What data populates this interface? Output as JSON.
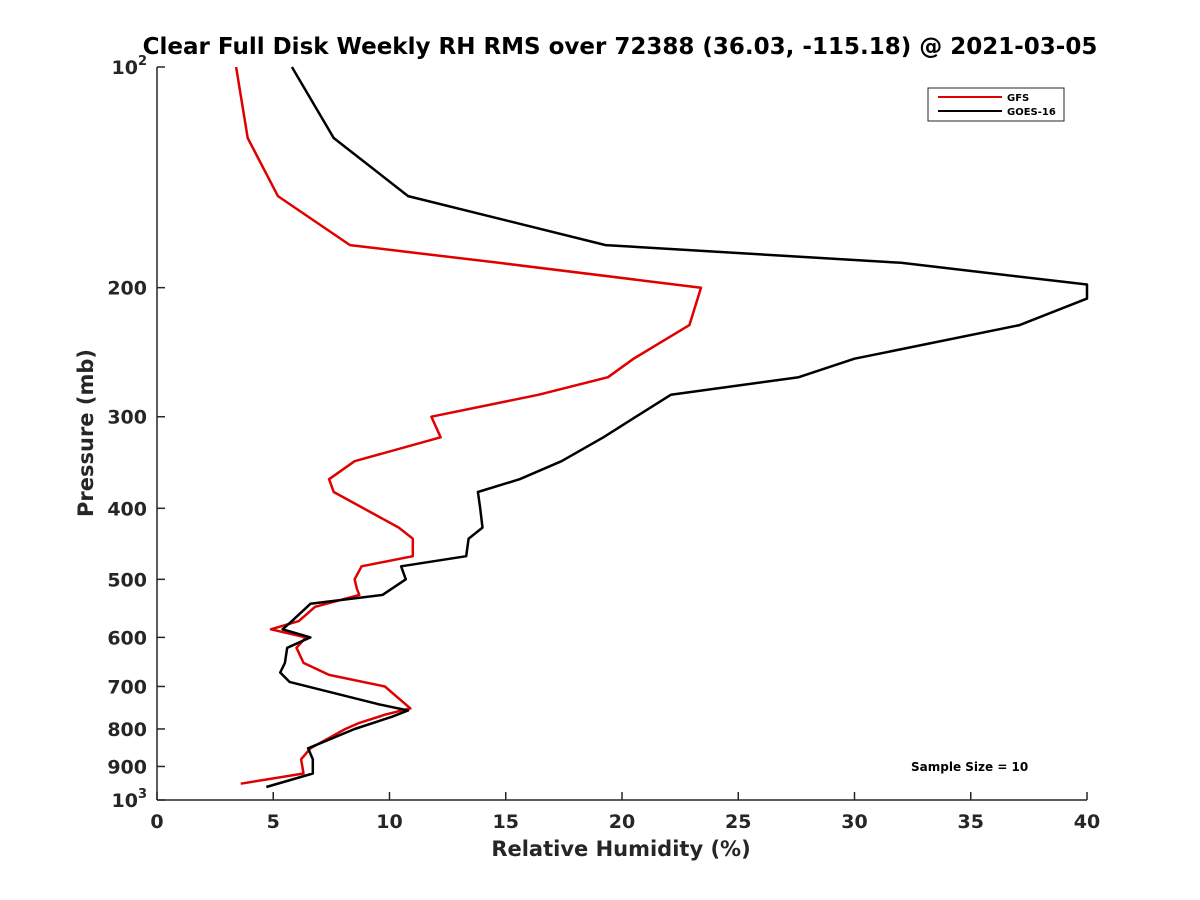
{
  "chart_data": {
    "type": "line",
    "title": "Clear Full Disk Weekly RH RMS over 72388 (36.03, -115.18) @ 2021-03-05",
    "xlabel": "Relative Humidity (%)",
    "ylabel": "Pressure (mb)",
    "xlim": [
      0,
      40
    ],
    "ylim": [
      100,
      1000
    ],
    "y_scale": "log",
    "y_reversed": true,
    "x_ticks": [
      "0",
      "5",
      "10",
      "15",
      "20",
      "25",
      "30",
      "35",
      "40"
    ],
    "x_tick_values": [
      0,
      5,
      10,
      15,
      20,
      25,
      30,
      35,
      40
    ],
    "y_ticks": [
      {
        "value": 100,
        "base": "10",
        "exp": "2"
      },
      {
        "value": 200,
        "label": "200"
      },
      {
        "value": 300,
        "label": "300"
      },
      {
        "value": 400,
        "label": "400"
      },
      {
        "value": 500,
        "label": "500"
      },
      {
        "value": 600,
        "label": "600"
      },
      {
        "value": 700,
        "label": "700"
      },
      {
        "value": 800,
        "label": "800"
      },
      {
        "value": 900,
        "label": "900"
      },
      {
        "value": 1000,
        "base": "10",
        "exp": "3"
      }
    ],
    "legend_position": "top-right",
    "grid": false,
    "annotation": "Sample Size = 10",
    "series": [
      {
        "name": "GFS",
        "color": "#e00000",
        "points": [
          {
            "rh": 3.4,
            "p": 100
          },
          {
            "rh": 3.9,
            "p": 125
          },
          {
            "rh": 5.2,
            "p": 150
          },
          {
            "rh": 8.3,
            "p": 175
          },
          {
            "rh": 14.7,
            "p": 185
          },
          {
            "rh": 23.4,
            "p": 200
          },
          {
            "rh": 22.9,
            "p": 225
          },
          {
            "rh": 20.5,
            "p": 250
          },
          {
            "rh": 19.4,
            "p": 265
          },
          {
            "rh": 16.4,
            "p": 280
          },
          {
            "rh": 11.8,
            "p": 300
          },
          {
            "rh": 12.2,
            "p": 320
          },
          {
            "rh": 8.5,
            "p": 345
          },
          {
            "rh": 7.4,
            "p": 365
          },
          {
            "rh": 7.6,
            "p": 380
          },
          {
            "rh": 10.4,
            "p": 425
          },
          {
            "rh": 11.0,
            "p": 440
          },
          {
            "rh": 11.0,
            "p": 465
          },
          {
            "rh": 8.8,
            "p": 480
          },
          {
            "rh": 8.5,
            "p": 500
          },
          {
            "rh": 8.6,
            "p": 515
          },
          {
            "rh": 8.7,
            "p": 525
          },
          {
            "rh": 6.8,
            "p": 545
          },
          {
            "rh": 6.1,
            "p": 570
          },
          {
            "rh": 4.9,
            "p": 585
          },
          {
            "rh": 6.4,
            "p": 600
          },
          {
            "rh": 6.0,
            "p": 620
          },
          {
            "rh": 6.3,
            "p": 650
          },
          {
            "rh": 7.4,
            "p": 675
          },
          {
            "rh": 9.8,
            "p": 700
          },
          {
            "rh": 10.9,
            "p": 750
          },
          {
            "rh": 9.8,
            "p": 765
          },
          {
            "rh": 8.7,
            "p": 785
          },
          {
            "rh": 8.1,
            "p": 800
          },
          {
            "rh": 6.6,
            "p": 850
          },
          {
            "rh": 6.2,
            "p": 880
          },
          {
            "rh": 6.3,
            "p": 920
          },
          {
            "rh": 3.6,
            "p": 950
          }
        ]
      },
      {
        "name": "GOES-16",
        "color": "#000000",
        "points": [
          {
            "rh": 5.8,
            "p": 100
          },
          {
            "rh": 7.6,
            "p": 125
          },
          {
            "rh": 10.8,
            "p": 150
          },
          {
            "rh": 19.3,
            "p": 175
          },
          {
            "rh": 32.0,
            "p": 185
          },
          {
            "rh": 40.0,
            "p": 198
          },
          {
            "rh": 40.0,
            "p": 207
          },
          {
            "rh": 37.1,
            "p": 225
          },
          {
            "rh": 30.0,
            "p": 250
          },
          {
            "rh": 27.6,
            "p": 265
          },
          {
            "rh": 22.1,
            "p": 280
          },
          {
            "rh": 20.6,
            "p": 300
          },
          {
            "rh": 19.2,
            "p": 320
          },
          {
            "rh": 17.4,
            "p": 345
          },
          {
            "rh": 15.6,
            "p": 365
          },
          {
            "rh": 13.8,
            "p": 380
          },
          {
            "rh": 13.9,
            "p": 400
          },
          {
            "rh": 14.0,
            "p": 425
          },
          {
            "rh": 13.4,
            "p": 440
          },
          {
            "rh": 13.3,
            "p": 465
          },
          {
            "rh": 10.5,
            "p": 480
          },
          {
            "rh": 10.7,
            "p": 500
          },
          {
            "rh": 9.7,
            "p": 525
          },
          {
            "rh": 6.6,
            "p": 540
          },
          {
            "rh": 5.8,
            "p": 570
          },
          {
            "rh": 5.4,
            "p": 585
          },
          {
            "rh": 6.6,
            "p": 600
          },
          {
            "rh": 5.6,
            "p": 620
          },
          {
            "rh": 5.5,
            "p": 650
          },
          {
            "rh": 5.3,
            "p": 670
          },
          {
            "rh": 5.7,
            "p": 690
          },
          {
            "rh": 9.5,
            "p": 740
          },
          {
            "rh": 10.8,
            "p": 755
          },
          {
            "rh": 10.1,
            "p": 770
          },
          {
            "rh": 8.5,
            "p": 800
          },
          {
            "rh": 6.5,
            "p": 850
          },
          {
            "rh": 6.7,
            "p": 880
          },
          {
            "rh": 6.7,
            "p": 920
          },
          {
            "rh": 4.7,
            "p": 960
          }
        ]
      }
    ]
  }
}
